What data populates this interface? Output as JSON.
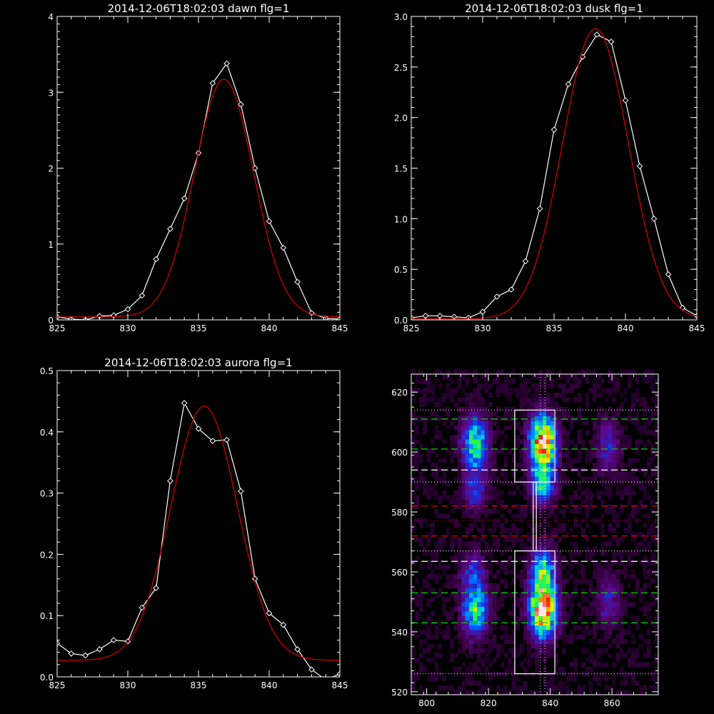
{
  "chart_data": [
    {
      "type": "line",
      "title": "2014-12-06T18:02:03 dawn flg=1",
      "xlim": [
        825,
        845
      ],
      "ylim": [
        0,
        4
      ],
      "xticks": [
        "825",
        "830",
        "835",
        "840",
        "845"
      ],
      "yticks": [
        "0",
        "1",
        "2",
        "3",
        "4"
      ],
      "grid": false,
      "series": [
        {
          "kind": "data",
          "color": "#ffffff",
          "marker": "diamond",
          "x": [
            825,
            826,
            827,
            828,
            829,
            830,
            831,
            832,
            833,
            834,
            835,
            836,
            837,
            838,
            839,
            840,
            841,
            842,
            843,
            844,
            845
          ],
          "values": [
            0.04,
            0.01,
            0.0,
            0.05,
            0.06,
            0.14,
            0.32,
            0.8,
            1.2,
            1.6,
            2.2,
            3.12,
            3.38,
            2.84,
            2.0,
            1.3,
            0.95,
            0.5,
            0.09,
            0.02,
            0.01
          ]
        },
        {
          "kind": "fit",
          "color": "#cc0000",
          "gauss": {
            "a": 3.13,
            "mu": 36.8,
            "sigma": 2.1,
            "base": 0.04
          }
        }
      ]
    },
    {
      "type": "line",
      "title": "2014-12-06T18:02:03 dusk flg=1",
      "xlim": [
        825,
        845
      ],
      "ylim": [
        0,
        3.0
      ],
      "xticks": [
        "825",
        "830",
        "835",
        "840",
        "845"
      ],
      "yticks": [
        "0.0",
        "0.5",
        "1.0",
        "1.5",
        "2.0",
        "2.5",
        "3.0"
      ],
      "grid": false,
      "series": [
        {
          "kind": "data",
          "color": "#ffffff",
          "marker": "diamond",
          "x": [
            825,
            826,
            827,
            828,
            829,
            830,
            831,
            832,
            833,
            834,
            835,
            836,
            837,
            838,
            839,
            840,
            841,
            842,
            843,
            844,
            845
          ],
          "values": [
            0.02,
            0.04,
            0.04,
            0.03,
            0.02,
            0.08,
            0.23,
            0.3,
            0.58,
            1.1,
            1.88,
            2.33,
            2.6,
            2.82,
            2.75,
            2.17,
            1.52,
            1.0,
            0.45,
            0.12,
            0.04
          ]
        },
        {
          "kind": "fit",
          "color": "#cc0000",
          "gauss": {
            "a": 2.87,
            "mu": 37.9,
            "sigma": 2.3,
            "base": 0.01
          }
        }
      ]
    },
    {
      "type": "line",
      "title": "2014-12-06T18:02:03 aurora flg=1",
      "xlim": [
        825,
        845
      ],
      "ylim": [
        0,
        0.5
      ],
      "xticks": [
        "825",
        "830",
        "835",
        "840",
        "845"
      ],
      "yticks": [
        "0.0",
        "0.1",
        "0.2",
        "0.3",
        "0.4",
        "0.5"
      ],
      "grid": false,
      "series": [
        {
          "kind": "data",
          "color": "#ffffff",
          "marker": "diamond",
          "x": [
            825,
            826,
            827,
            828,
            829,
            830,
            831,
            832,
            833,
            834,
            835,
            836,
            837,
            838,
            839,
            840,
            841,
            842,
            843,
            844,
            845
          ],
          "values": [
            0.055,
            0.038,
            0.035,
            0.045,
            0.06,
            0.058,
            0.113,
            0.145,
            0.32,
            0.447,
            0.405,
            0.385,
            0.387,
            0.303,
            0.16,
            0.104,
            0.085,
            0.045,
            0.012,
            -0.005,
            0.005
          ]
        },
        {
          "kind": "fit",
          "color": "#cc0000",
          "gauss": {
            "a": 0.415,
            "mu": 35.4,
            "sigma": 2.35,
            "base": 0.027
          }
        }
      ]
    },
    {
      "type": "heatmap",
      "title": "",
      "xlim": [
        795,
        875
      ],
      "ylim": [
        519,
        626
      ],
      "xticks": [
        "800",
        "820",
        "840",
        "860"
      ],
      "yticks": [
        "520",
        "540",
        "560",
        "580",
        "600",
        "620"
      ],
      "colormap": [
        "#000000",
        "#3a0046",
        "#5a0a8c",
        "#2424d2",
        "#0060ff",
        "#00c0ff",
        "#00e8a0",
        "#30ff30",
        "#c8ff00",
        "#ffe000",
        "#ff6000",
        "#ff0000",
        "#ffe8e8"
      ],
      "blobs": [
        {
          "x": 815,
          "y": 602,
          "sx": 2.8,
          "sy": 6,
          "amp": 0.5
        },
        {
          "x": 815,
          "y": 586,
          "sx": 2.5,
          "sy": 4,
          "amp": 0.22
        },
        {
          "x": 815,
          "y": 547,
          "sx": 2.8,
          "sy": 6,
          "amp": 0.48
        },
        {
          "x": 814,
          "y": 560,
          "sx": 2.5,
          "sy": 4,
          "amp": 0.2
        },
        {
          "x": 837,
          "y": 602,
          "sx": 2.8,
          "sy": 6,
          "amp": 0.92
        },
        {
          "x": 837,
          "y": 588,
          "sx": 2.6,
          "sy": 4,
          "amp": 0.4
        },
        {
          "x": 837,
          "y": 547,
          "sx": 2.8,
          "sy": 6,
          "amp": 0.95
        },
        {
          "x": 837,
          "y": 560,
          "sx": 2.6,
          "sy": 5,
          "amp": 0.45
        },
        {
          "x": 858,
          "y": 601,
          "sx": 2.6,
          "sy": 6,
          "amp": 0.2
        },
        {
          "x": 858,
          "y": 550,
          "sx": 2.6,
          "sy": 6,
          "amp": 0.18
        }
      ],
      "boxes": [
        {
          "x": [
            828.5,
            841.5
          ],
          "y": [
            590,
            614
          ]
        },
        {
          "x": [
            828.5,
            841.5
          ],
          "y": [
            526,
            567
          ]
        },
        {
          "x": [
            834.5,
            835.5
          ],
          "y": [
            567,
            590
          ]
        }
      ],
      "hlines": [
        {
          "y": 611,
          "color": "#00cc00",
          "style": "dashed"
        },
        {
          "y": 601,
          "color": "#00cc00",
          "style": "dashed"
        },
        {
          "y": 553,
          "color": "#00cc00",
          "style": "dashed"
        },
        {
          "y": 543,
          "color": "#00cc00",
          "style": "dashed"
        },
        {
          "y": 594,
          "color": "#ffffff",
          "style": "dashed"
        },
        {
          "y": 563.5,
          "color": "#ffffff",
          "style": "dashed"
        },
        {
          "y": 582,
          "color": "#dd0000",
          "style": "dashed"
        },
        {
          "y": 572,
          "color": "#dd0000",
          "style": "dashed"
        },
        {
          "y": 577,
          "color": "#aa0000",
          "style": "dotted"
        },
        {
          "y": 614,
          "color": "#cccccc",
          "style": "dotted"
        },
        {
          "y": 590,
          "color": "#cccccc",
          "style": "dotted"
        },
        {
          "y": 567,
          "color": "#cccccc",
          "style": "dotted"
        },
        {
          "y": 526,
          "color": "#cccccc",
          "style": "dotted"
        }
      ],
      "vlines": [
        {
          "x": 836.8,
          "color": "#dddddd",
          "style": "dotted"
        },
        {
          "x": 838.3,
          "color": "#dddddd",
          "style": "dotted"
        }
      ]
    }
  ]
}
